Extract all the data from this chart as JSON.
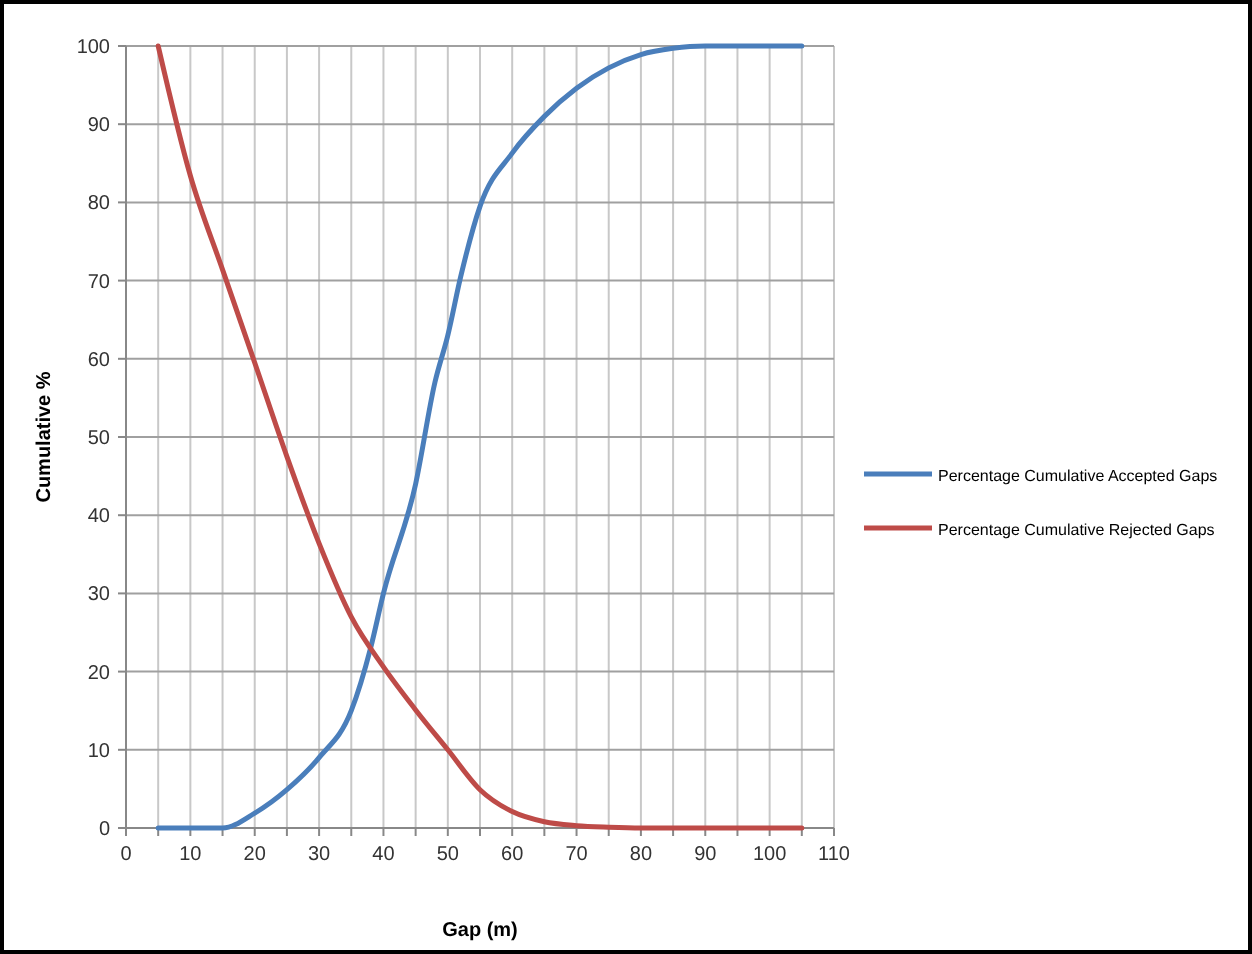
{
  "chart_data": {
    "type": "line",
    "xlabel": "Gap (m)",
    "ylabel": "Cumulative %",
    "xlim": [
      0,
      110
    ],
    "ylim": [
      0,
      100
    ],
    "xticks": [
      0,
      {
        "value": 5,
        "label": null
      },
      10,
      {
        "value": 15,
        "label": null
      },
      20,
      {
        "value": 25,
        "label": null
      },
      30,
      {
        "value": 35,
        "label": null
      },
      40,
      {
        "value": 45,
        "label": null
      },
      50,
      {
        "value": 55,
        "label": null
      },
      60,
      {
        "value": 65,
        "label": null
      },
      70,
      {
        "value": 75,
        "label": null
      },
      80,
      {
        "value": 85,
        "label": null
      },
      90,
      {
        "value": 95,
        "label": null
      },
      100,
      {
        "value": 105,
        "label": null
      },
      110
    ],
    "yticks": [
      0,
      10,
      20,
      30,
      40,
      50,
      60,
      70,
      80,
      90,
      100
    ],
    "grid": true,
    "legend": "right",
    "marker": "none",
    "line_style": "solid",
    "series": [
      {
        "name": "Percentage Cumulative Accepted Gaps",
        "color": "#4a7ebb",
        "x": [
          5,
          10,
          15,
          20,
          25,
          30,
          35,
          38,
          40,
          45,
          48,
          50,
          52,
          55,
          60,
          65,
          70,
          75,
          80,
          85,
          90,
          105
        ],
        "values": [
          0,
          0,
          0,
          1.9,
          4.9,
          9,
          15,
          23,
          30,
          44,
          57,
          63,
          70.5,
          79.5,
          86.3,
          91,
          94.6,
          97.2,
          98.9,
          99.7,
          100,
          100
        ]
      },
      {
        "name": "Percentage Cumulative Rejected Gaps",
        "color": "#be4b48",
        "x": [
          5,
          10,
          15,
          20,
          25,
          30,
          35,
          40,
          45,
          50,
          55,
          60,
          65,
          70,
          75,
          80,
          105
        ],
        "values": [
          100,
          83.4,
          71.4,
          59.5,
          47.5,
          36.4,
          27,
          20.6,
          15.1,
          10,
          4.9,
          2.1,
          0.8,
          0.3,
          0.1,
          0,
          0
        ]
      }
    ]
  }
}
